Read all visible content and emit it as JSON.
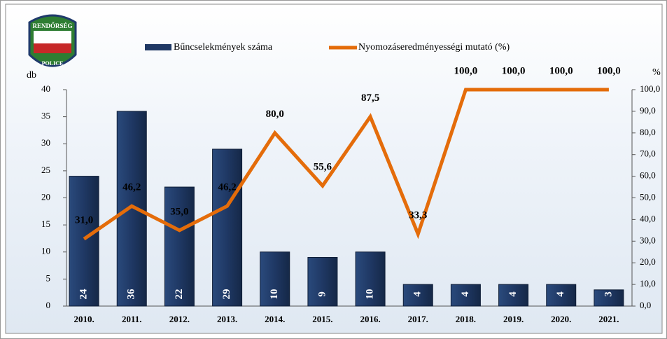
{
  "logo": {
    "top": "RENDŐRSÉG",
    "bottom": "POLICE"
  },
  "chart_data": {
    "type": "bar",
    "categories": [
      "2010.",
      "2011.",
      "2012.",
      "2013.",
      "2014.",
      "2015.",
      "2016.",
      "2017.",
      "2018.",
      "2019.",
      "2020.",
      "2021."
    ],
    "series": [
      {
        "name": "Bűncselekmények száma",
        "type": "bar",
        "color": "#1f3864",
        "values": [
          24,
          36,
          22,
          29,
          10,
          9,
          10,
          4,
          4,
          4,
          4,
          3
        ]
      },
      {
        "name": "Nyomozáseredményességi mutató (%)",
        "type": "line",
        "axis": "y2",
        "color": "#e46c0a",
        "values": [
          31.0,
          46.2,
          35.0,
          46.2,
          80.0,
          55.6,
          87.5,
          33.3,
          100.0,
          100.0,
          100.0,
          100.0
        ],
        "value_labels": [
          "31,0",
          "46,2",
          "35,0",
          "46,2",
          "80,0",
          "55,6",
          "87,5",
          "33,3",
          "100,0",
          "100,0",
          "100,0",
          "100,0"
        ]
      }
    ],
    "ylabel": "db",
    "y2label": "%",
    "ylim": [
      0,
      40
    ],
    "yticks": [
      0,
      5,
      10,
      15,
      20,
      25,
      30,
      35,
      40
    ],
    "y2lim": [
      0,
      100
    ],
    "y2ticks": [
      {
        "value": 0,
        "label": "0,0"
      },
      {
        "value": 10,
        "label": "10,0"
      },
      {
        "value": 20,
        "label": "20,0"
      },
      {
        "value": 30,
        "label": "30,0"
      },
      {
        "value": 40,
        "label": "40,0"
      },
      {
        "value": 50,
        "label": "50,0"
      },
      {
        "value": 60,
        "label": "60,0"
      },
      {
        "value": 70,
        "label": "70,0"
      },
      {
        "value": 80,
        "label": "80,0"
      },
      {
        "value": 90,
        "label": "90,0"
      },
      {
        "value": 100,
        "label": "100,0"
      }
    ]
  }
}
